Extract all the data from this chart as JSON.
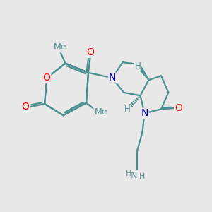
{
  "bg_color": "#e8e8e8",
  "bond_color": "#4a9090",
  "bond_width": 1.6,
  "atom_colors": {
    "O": "#ff0000",
    "N": "#0000cc",
    "C": "#4a9090",
    "H": "#5a9090"
  },
  "font_size_atom": 10,
  "font_size_me": 9,
  "font_size_h": 8.5
}
